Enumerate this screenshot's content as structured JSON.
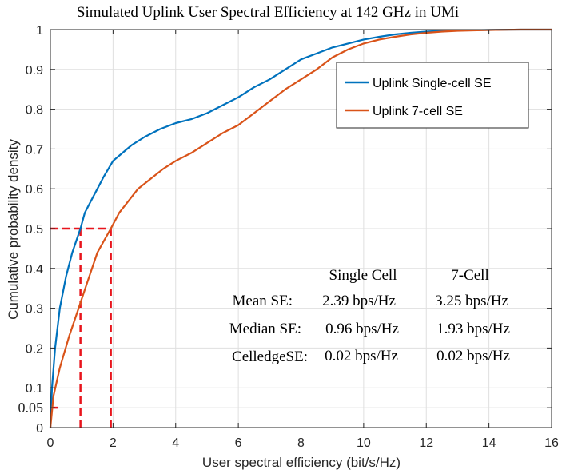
{
  "chart_data": {
    "type": "line",
    "title": "Simulated Uplink User Spectral Efficiency at 142 GHz in UMi",
    "xlabel": "User spectral efficiency (bit/s/Hz)",
    "ylabel": "Cumulative probability density",
    "xlim": [
      0,
      16
    ],
    "ylim": [
      0,
      1
    ],
    "xticks": [
      0,
      2,
      4,
      6,
      8,
      10,
      12,
      14,
      16
    ],
    "yticks": [
      0,
      0.1,
      0.2,
      0.3,
      0.4,
      0.5,
      0.6,
      0.7,
      0.8,
      0.9,
      1
    ],
    "extra_ytick": 0.05,
    "grid": true,
    "legend_position": "top-right",
    "series": [
      {
        "name": "Uplink Single-cell SE",
        "color": "#0072BD",
        "x": [
          0,
          0.05,
          0.15,
          0.3,
          0.5,
          0.7,
          0.96,
          1.1,
          1.3,
          1.5,
          1.7,
          2.0,
          2.3,
          2.6,
          3.0,
          3.5,
          4.0,
          4.5,
          5.0,
          5.5,
          6.0,
          6.5,
          7.0,
          7.5,
          8.0,
          8.5,
          9.0,
          9.5,
          10.0,
          10.5,
          11.0,
          11.5,
          12.0,
          12.5,
          13.0,
          14.0,
          15.0,
          16.0
        ],
        "y": [
          0,
          0.1,
          0.2,
          0.3,
          0.38,
          0.44,
          0.5,
          0.54,
          0.57,
          0.6,
          0.63,
          0.67,
          0.69,
          0.71,
          0.73,
          0.75,
          0.765,
          0.775,
          0.79,
          0.81,
          0.83,
          0.855,
          0.875,
          0.9,
          0.925,
          0.94,
          0.955,
          0.965,
          0.975,
          0.982,
          0.988,
          0.992,
          0.995,
          0.997,
          0.998,
          0.999,
          1.0,
          1.0
        ]
      },
      {
        "name": "Uplink 7-cell SE",
        "color": "#D95319",
        "x": [
          0,
          0.1,
          0.3,
          0.6,
          0.9,
          1.2,
          1.5,
          1.93,
          2.2,
          2.5,
          2.8,
          3.2,
          3.6,
          4.0,
          4.5,
          5.0,
          5.5,
          6.0,
          6.5,
          7.0,
          7.5,
          8.0,
          8.5,
          9.0,
          9.5,
          10.0,
          10.5,
          11.0,
          11.5,
          12.0,
          12.5,
          13.0,
          14.0,
          15.0,
          16.0
        ],
        "y": [
          0,
          0.08,
          0.15,
          0.23,
          0.3,
          0.37,
          0.44,
          0.5,
          0.54,
          0.57,
          0.6,
          0.625,
          0.65,
          0.67,
          0.69,
          0.715,
          0.74,
          0.76,
          0.79,
          0.82,
          0.85,
          0.875,
          0.9,
          0.93,
          0.95,
          0.965,
          0.975,
          0.982,
          0.988,
          0.992,
          0.995,
          0.997,
          0.999,
          1.0,
          1.0
        ]
      }
    ],
    "reference_lines": {
      "color": "#E8141C",
      "median_level": 0.5,
      "single_cell_median": 0.96,
      "seven_cell_median": 1.93,
      "cell_edge_level": 0.05,
      "cell_edge_se": 0.02
    },
    "annotation_table": {
      "columns": [
        "Single Cell",
        "7-Cell"
      ],
      "rows": [
        {
          "label": "Mean SE:",
          "single": "2.39 bps/Hz",
          "seven": "3.25 bps/Hz"
        },
        {
          "label": "Median SE:",
          "single": "0.96 bps/Hz",
          "seven": "1.93 bps/Hz"
        },
        {
          "label": "CelledgeSE:",
          "single": "0.02 bps/Hz",
          "seven": "0.02 bps/Hz"
        }
      ]
    }
  }
}
